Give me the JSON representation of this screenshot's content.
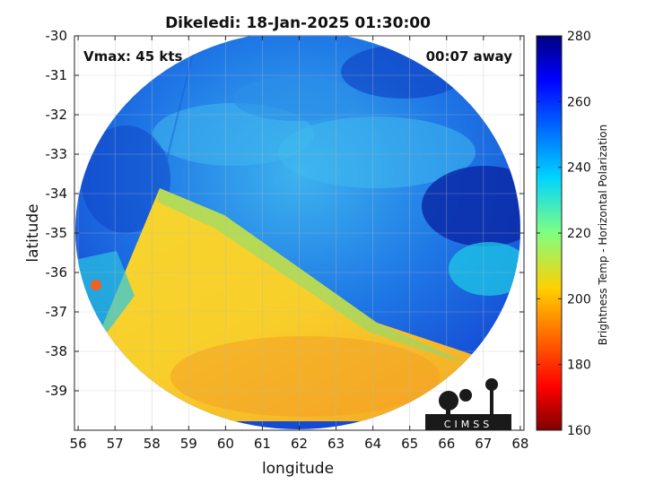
{
  "title": "Dikeledi: 18-Jan-2025 01:30:00",
  "vmax_label": "Vmax: 45 kts",
  "time_away_label": "00:07 away",
  "logo_text": "CIMSS",
  "x_axis": {
    "label": "longitude",
    "range": [
      55.9,
      68.1
    ],
    "ticks": [
      "56",
      "57",
      "58",
      "59",
      "60",
      "61",
      "62",
      "63",
      "64",
      "65",
      "66",
      "67",
      "68"
    ]
  },
  "y_axis": {
    "label": "latitude",
    "range": [
      -40,
      -30
    ],
    "ticks": [
      "-30",
      "-31",
      "-32",
      "-33",
      "-34",
      "-35",
      "-36",
      "-37",
      "-38",
      "-39"
    ]
  },
  "colorbar": {
    "label": "Brightness Temp - Horizontal Polarization",
    "range": [
      160,
      280
    ],
    "ticks": [
      "280",
      "260",
      "240",
      "220",
      "200",
      "180",
      "160"
    ],
    "colormap": "jet"
  },
  "colors": {
    "cold_boundary": "#f5b83a",
    "warm_band": "#f7d430",
    "cool_field": "#1f78e6",
    "deep_blue": "#0a2aa8",
    "teal": "#1ec8e6"
  }
}
